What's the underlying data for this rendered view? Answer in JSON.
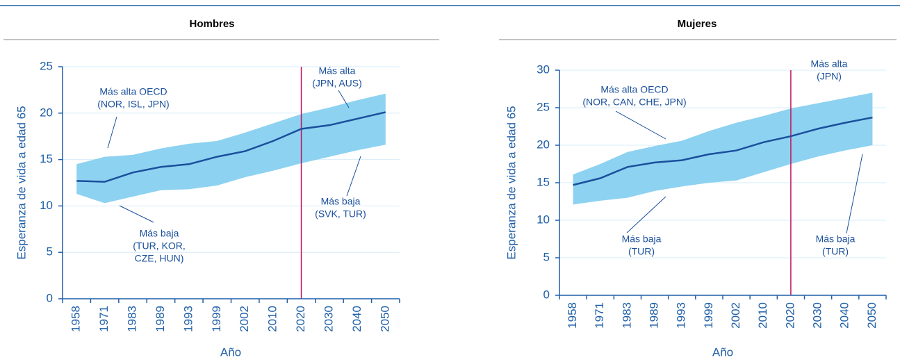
{
  "chart_data": [
    {
      "type": "line",
      "title": "Hombres",
      "x_label": "Año",
      "y_label": "Esperanza de vida a edad 65",
      "categories": [
        "1958",
        "1971",
        "1983",
        "1989",
        "1993",
        "1999",
        "2002",
        "2010",
        "2020",
        "2030",
        "2040",
        "2050"
      ],
      "series": [
        {
          "color": "#1a4f9c",
          "values": [
            12.7,
            12.6,
            13.6,
            14.2,
            14.5,
            15.3,
            15.9,
            17.0,
            18.3,
            18.7,
            19.4,
            20.1
          ]
        }
      ],
      "band": {
        "color": "#8dd2f0",
        "upper": [
          14.5,
          15.3,
          15.5,
          16.2,
          16.7,
          17.0,
          17.9,
          18.9,
          19.9,
          20.6,
          21.4,
          22.1
        ],
        "lower": [
          11.3,
          10.3,
          11.0,
          11.7,
          11.8,
          12.2,
          13.1,
          13.8,
          14.6,
          15.3,
          16.0,
          16.6
        ]
      },
      "vline": "2020",
      "vline_color": "#c0145c",
      "ylim": [
        0,
        25
      ],
      "yticks": [
        0,
        5,
        10,
        15,
        20,
        25
      ],
      "grid": true,
      "annotations": [
        {
          "lines": [
            "Más alta OECD",
            "(NOR, ISL, JPN)"
          ]
        },
        {
          "lines": [
            "Más baja",
            "(TUR, KOR,",
            "CZE, HUN)"
          ]
        },
        {
          "lines": [
            "Más alta",
            "(JPN, AUS)"
          ]
        },
        {
          "lines": [
            "Más baja",
            "(SVK, TUR)"
          ]
        }
      ]
    },
    {
      "type": "line",
      "title": "Mujeres",
      "x_label": "Año",
      "y_label": "Esperanza de vida a edad 65",
      "categories": [
        "1958",
        "1971",
        "1983",
        "1989",
        "1993",
        "1999",
        "2002",
        "2010",
        "2020",
        "2030",
        "2040",
        "2050"
      ],
      "series": [
        {
          "color": "#1a4f9c",
          "values": [
            14.7,
            15.6,
            17.1,
            17.7,
            18.0,
            18.8,
            19.3,
            20.4,
            21.2,
            22.2,
            23.0,
            23.7
          ]
        }
      ],
      "band": {
        "color": "#8dd2f0",
        "upper": [
          16.1,
          17.5,
          19.1,
          19.9,
          20.6,
          21.9,
          23.0,
          23.9,
          24.9,
          25.6,
          26.3,
          27.0
        ],
        "lower": [
          12.1,
          12.6,
          13.0,
          13.9,
          14.5,
          15.0,
          15.3,
          16.4,
          17.5,
          18.5,
          19.3,
          20.0
        ]
      },
      "vline": "2020",
      "vline_color": "#c0145c",
      "ylim": [
        0,
        30
      ],
      "yticks": [
        0,
        5,
        10,
        15,
        20,
        25,
        30
      ],
      "grid": true,
      "annotations": [
        {
          "lines": [
            "Más alta OECD",
            "(NOR, CAN, CHE, JPN)"
          ]
        },
        {
          "lines": [
            "Más baja",
            "(TUR)"
          ]
        },
        {
          "lines": [
            "Más alta",
            "(JPN)"
          ]
        },
        {
          "lines": [
            "Más baja",
            "(TUR)"
          ]
        }
      ]
    }
  ]
}
